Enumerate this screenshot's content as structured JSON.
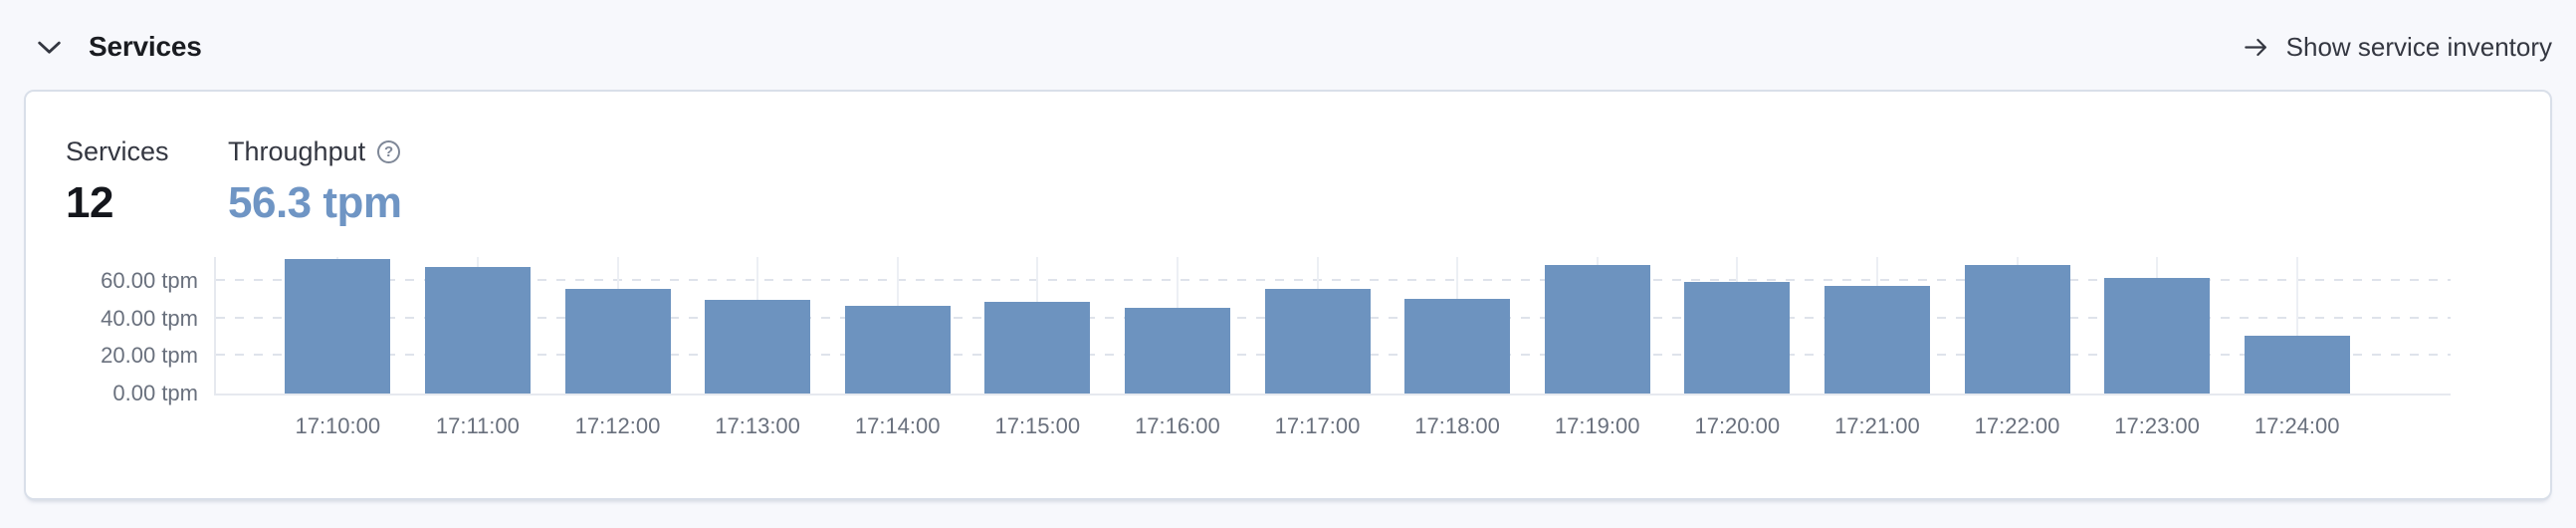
{
  "header": {
    "title": "Services",
    "inventory_link_label": "Show service inventory"
  },
  "card": {
    "stats": {
      "services": {
        "label": "Services",
        "value": "12"
      },
      "throughput": {
        "label": "Throughput",
        "value": "56.3 tpm",
        "value_color": "#6f95c4"
      }
    }
  },
  "chart_data": {
    "type": "bar",
    "title": "Throughput",
    "unit": "tpm",
    "x": [
      "17:10:00",
      "17:11:00",
      "17:12:00",
      "17:13:00",
      "17:14:00",
      "17:15:00",
      "17:16:00",
      "17:17:00",
      "17:18:00",
      "17:19:00",
      "17:20:00",
      "17:21:00",
      "17:22:00",
      "17:23:00",
      "17:24:00"
    ],
    "values": [
      71.8,
      67.7,
      55.9,
      50.2,
      46.7,
      49.1,
      45.9,
      55.9,
      50.6,
      68.8,
      59.8,
      57.6,
      68.8,
      61.7,
      31.0
    ],
    "y_ticks": [
      {
        "value": 0,
        "label": "0.00 tpm"
      },
      {
        "value": 20,
        "label": "20.00 tpm"
      },
      {
        "value": 40,
        "label": "40.00 tpm"
      },
      {
        "value": 60,
        "label": "60.00 tpm"
      }
    ],
    "ylim": [
      0,
      74
    ],
    "bar_color": "#6d93bf",
    "grid": "horizontal-dashed",
    "legend": "none"
  }
}
